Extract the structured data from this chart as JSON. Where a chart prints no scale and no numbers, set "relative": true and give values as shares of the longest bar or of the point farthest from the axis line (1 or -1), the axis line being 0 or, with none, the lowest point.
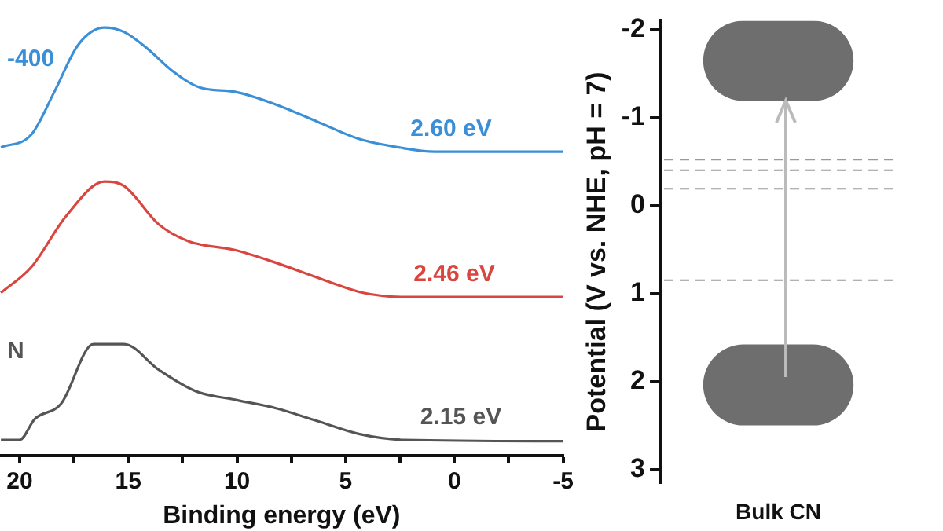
{
  "chart_data": [
    {
      "type": "line",
      "relative": true,
      "xlabel": "Binding energy (eV)",
      "xlim": [
        20.9,
        -5
      ],
      "xticks": [
        20,
        {
          "value": 17.5,
          "label": null
        },
        15,
        {
          "value": 12.5,
          "label": null
        },
        10,
        {
          "value": 7.5,
          "label": null
        },
        5,
        {
          "value": 2.5,
          "label": null
        },
        0,
        {
          "value": -2.5,
          "label": null
        },
        -5
      ],
      "grid": false,
      "legend": false,
      "marker": "none",
      "line_style": "solid",
      "series": [
        {
          "name": "-400",
          "color": "#3a8fd6",
          "x": [
            20.86,
            19.46,
            18.4,
            17.3,
            16.1,
            15.2,
            14.1,
            13.0,
            11.7,
            10.1,
            8.2,
            6.3,
            4.4,
            2.55,
            0.9,
            -5
          ],
          "values": [
            0.72,
            0.75,
            0.85,
            0.96,
            1.0,
            0.99,
            0.95,
            0.9,
            0.86,
            0.85,
            0.82,
            0.78,
            0.74,
            0.72,
            0.71,
            0.71
          ]
        },
        {
          "color": "#d9453f",
          "x": [
            20.86,
            19.46,
            17.85,
            16.1,
            15.2,
            13.6,
            12.2,
            10.1,
            8.2,
            6.0,
            4.2,
            2.3,
            -5
          ],
          "values": [
            0.38,
            0.44,
            0.56,
            0.64,
            0.63,
            0.54,
            0.5,
            0.48,
            0.45,
            0.41,
            0.38,
            0.37,
            0.37
          ]
        },
        {
          "name": "N",
          "color": "#555555",
          "x": [
            20.86,
            20.0,
            19.3,
            18.1,
            16.6,
            15.2,
            13.6,
            11.9,
            10.1,
            8.2,
            6.3,
            4.4,
            2.3,
            -5
          ],
          "values": [
            0.036,
            0.036,
            0.085,
            0.12,
            0.26,
            0.26,
            0.2,
            0.15,
            0.13,
            0.11,
            0.08,
            0.05,
            0.036,
            0.033
          ]
        }
      ],
      "annotations": [
        {
          "text": "2.60 eV",
          "x": 2.6,
          "y": 0.71
        },
        {
          "text": "2.46 eV",
          "x": 2.46,
          "y": 0.37
        },
        {
          "text": "2.15 eV",
          "x": 2.15,
          "y": 0.036
        }
      ]
    },
    {
      "type": "bar",
      "categories": [
        "Bulk CN"
      ],
      "ylabel": "Potential (V vs. NHE, pH = 7)",
      "ylim": [
        3.15,
        -2.1
      ],
      "series": [
        {
          "color": "#6e6e6e",
          "base": [
            -1.19
          ],
          "values": [
            -0.91
          ]
        },
        {
          "color": "#6e6e6e",
          "base": [
            1.58
          ],
          "values": [
            0.92
          ]
        }
      ],
      "yticks": [
        -2,
        -1,
        0,
        1,
        2,
        3
      ],
      "ref_lines": [
        {
          "axis": "y",
          "value": -0.52,
          "line_style": "dashed"
        },
        {
          "axis": "y",
          "value": -0.4,
          "line_style": "dashed"
        },
        {
          "axis": "y",
          "value": -0.19,
          "line_style": "dashed"
        },
        {
          "axis": "y",
          "value": 0.85,
          "line_style": "dashed"
        }
      ]
    }
  ]
}
